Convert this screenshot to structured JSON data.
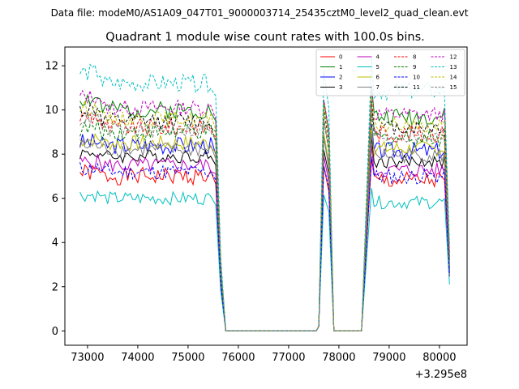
{
  "chart_data": {
    "type": "line",
    "suptitle": "Data file: modeM0/AS1A09_047T01_9000003714_25435cztM0_level2_quad_clean.evt",
    "title": "Quadrant 1 module wise count rates with 100.0s bins.",
    "xlabel": "",
    "ylabel": "",
    "x_offset_label": "+3.295e8",
    "xlim": [
      72550,
      80550
    ],
    "ylim": [
      -0.65,
      12.85
    ],
    "xticks": [
      73000,
      74000,
      75000,
      76000,
      77000,
      78000,
      79000,
      80000
    ],
    "yticks": [
      0,
      2,
      4,
      6,
      8,
      10,
      12
    ],
    "legend": {
      "placement": "top-right",
      "columns": 4
    },
    "segments": [
      {
        "x_start": 72850,
        "x_end": 75550
      },
      {
        "x_start": 75650,
        "x_end": 75750,
        "gap": true
      },
      {
        "x_start": 77550,
        "x_end": 77950
      },
      {
        "x_start": 78550,
        "x_end": 80250
      }
    ],
    "series": [
      {
        "name": "0",
        "color": "#ff0000",
        "dash": "solid",
        "plateau": 7.0,
        "noise": 0.4,
        "seed": 1
      },
      {
        "name": "1",
        "color": "#008000",
        "dash": "solid",
        "plateau": 10.0,
        "noise": 0.4,
        "seed": 2
      },
      {
        "name": "2",
        "color": "#0000ff",
        "dash": "solid",
        "plateau": 8.4,
        "noise": 0.4,
        "seed": 3
      },
      {
        "name": "3",
        "color": "#000000",
        "dash": "solid",
        "plateau": 7.9,
        "noise": 0.3,
        "seed": 4
      },
      {
        "name": "4",
        "color": "#bf00bf",
        "dash": "solid",
        "plateau": 7.5,
        "noise": 0.35,
        "seed": 5
      },
      {
        "name": "5",
        "color": "#00bfbf",
        "dash": "solid",
        "plateau": 6.0,
        "noise": 0.3,
        "seed": 6
      },
      {
        "name": "6",
        "color": "#bfbf00",
        "dash": "solid",
        "plateau": 8.5,
        "noise": 0.35,
        "seed": 7
      },
      {
        "name": "7",
        "color": "#808080",
        "dash": "solid",
        "plateau": 8.2,
        "noise": 0.35,
        "seed": 8
      },
      {
        "name": "8",
        "color": "#ff0000",
        "dash": "dashed",
        "plateau": 9.2,
        "noise": 0.4,
        "seed": 9
      },
      {
        "name": "9",
        "color": "#008000",
        "dash": "dashed",
        "plateau": 9.0,
        "noise": 0.4,
        "seed": 10
      },
      {
        "name": "10",
        "color": "#0000ff",
        "dash": "dashed",
        "plateau": 7.2,
        "noise": 0.35,
        "seed": 11
      },
      {
        "name": "11",
        "color": "#000000",
        "dash": "dashed",
        "plateau": 9.5,
        "noise": 0.35,
        "seed": 12
      },
      {
        "name": "12",
        "color": "#bf00bf",
        "dash": "dashed",
        "plateau": 10.1,
        "noise": 0.35,
        "seed": 13
      },
      {
        "name": "13",
        "color": "#00bfbf",
        "dash": "dashed",
        "plateau": 11.2,
        "noise": 0.4,
        "seed": 14
      },
      {
        "name": "14",
        "color": "#bfbf00",
        "dash": "dashed",
        "plateau": 9.6,
        "noise": 0.35,
        "seed": 15
      },
      {
        "name": "15",
        "color": "#808080",
        "dash": "dashed",
        "plateau": 9.1,
        "noise": 0.35,
        "seed": 16
      }
    ]
  }
}
